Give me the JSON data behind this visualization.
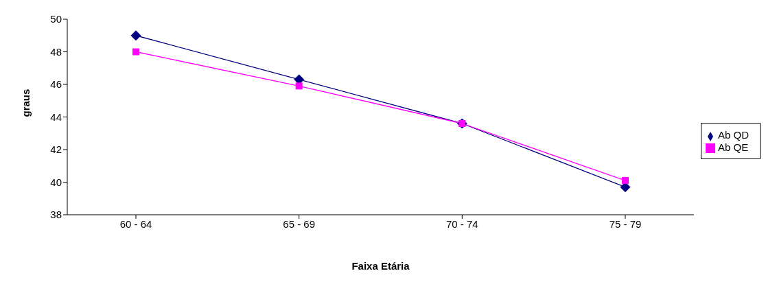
{
  "chart_data": {
    "type": "line",
    "xlabel": "Faixa Etária",
    "ylabel": "graus",
    "categories": [
      "60 - 64",
      "65 - 69",
      "70 - 74",
      "75 - 79"
    ],
    "series": [
      {
        "name": "Ab QD",
        "color": "#000080",
        "marker": "diamond",
        "values": [
          49.0,
          46.3,
          43.6,
          39.7
        ]
      },
      {
        "name": "Ab QE",
        "color": "#ff00ff",
        "marker": "square",
        "values": [
          48.0,
          45.9,
          43.6,
          40.1
        ]
      }
    ],
    "ylim": [
      38,
      50
    ],
    "yticks": [
      38,
      40,
      42,
      44,
      46,
      48,
      50
    ],
    "grid": false,
    "legend": "right",
    "line_style": "solid"
  }
}
